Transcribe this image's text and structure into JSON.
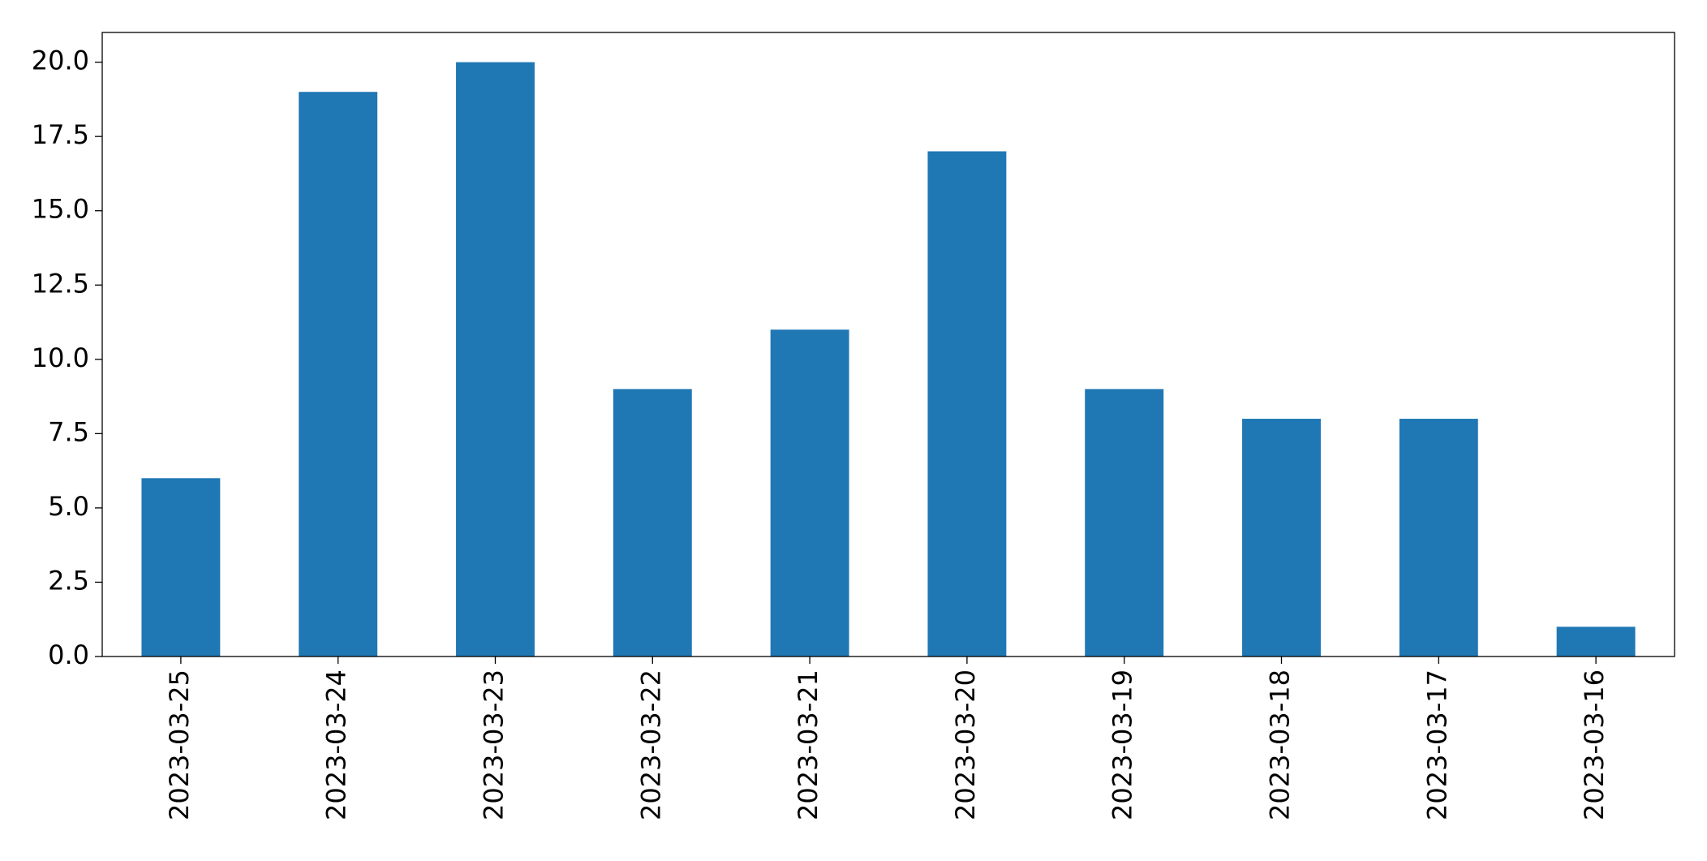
{
  "chart_data": {
    "type": "bar",
    "categories": [
      "2023-03-25",
      "2023-03-24",
      "2023-03-23",
      "2023-03-22",
      "2023-03-21",
      "2023-03-20",
      "2023-03-19",
      "2023-03-18",
      "2023-03-17",
      "2023-03-16"
    ],
    "values": [
      6,
      19,
      20,
      9,
      11,
      17,
      9,
      8,
      8,
      1
    ],
    "color": "#1f77b4",
    "ylim": [
      0,
      21
    ],
    "yticks": [
      {
        "value": 0,
        "label": "0.0"
      },
      {
        "value": 2.5,
        "label": "2.5"
      },
      {
        "value": 5,
        "label": "5.0"
      },
      {
        "value": 7.5,
        "label": "7.5"
      },
      {
        "value": 10,
        "label": "10.0"
      },
      {
        "value": 12.5,
        "label": "12.5"
      },
      {
        "value": 15,
        "label": "15.0"
      },
      {
        "value": 17.5,
        "label": "17.5"
      },
      {
        "value": 20,
        "label": "20.0"
      }
    ],
    "grid": false
  }
}
